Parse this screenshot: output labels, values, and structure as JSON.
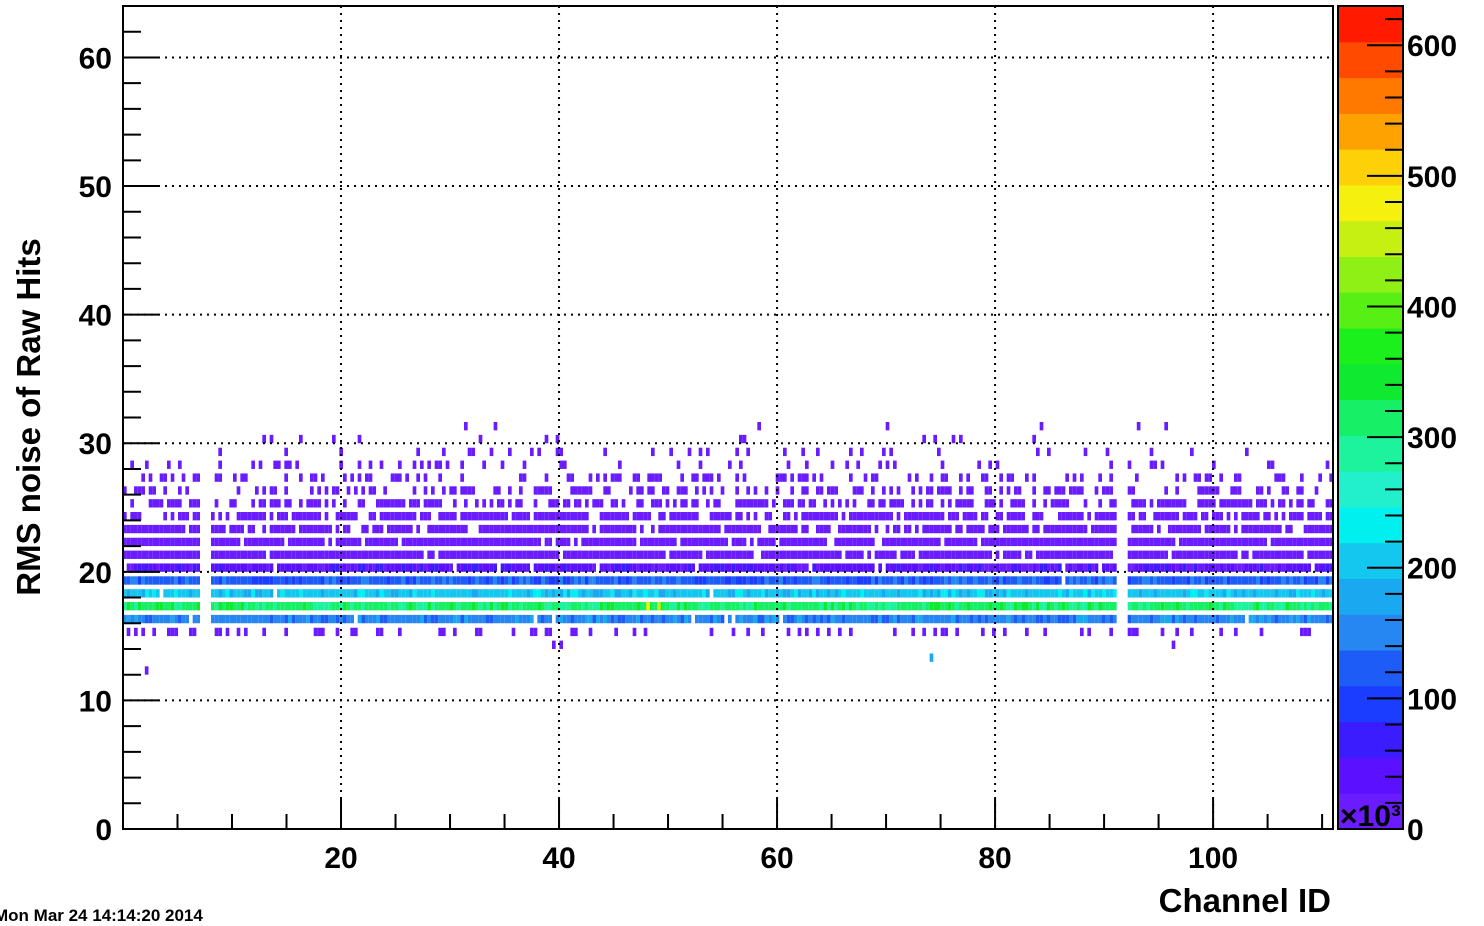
{
  "chart_data": {
    "type": "heatmap",
    "xlabel": "Channel ID",
    "ylabel": "RMS noise of Raw Hits",
    "xlim": [
      0,
      111
    ],
    "ylim": [
      0,
      64
    ],
    "x_ticks": [
      20,
      40,
      60,
      80,
      100
    ],
    "y_ticks": [
      0,
      10,
      20,
      30,
      40,
      50,
      60
    ],
    "grid": true,
    "colorbar": {
      "min": 0,
      "max": 630,
      "ticks": [
        0,
        100,
        200,
        300,
        400,
        500,
        600
      ],
      "multiplier_label": "×10³",
      "palette": [
        "#6a1cff",
        "#5b10ff",
        "#3a1cff",
        "#1a3dff",
        "#1e5cf8",
        "#2686f2",
        "#1aa8f0",
        "#14c7ee",
        "#00f0f0",
        "#22f0cc",
        "#1df29c",
        "#16ef66",
        "#0fe930",
        "#1cf01c",
        "#57ef14",
        "#8ef014",
        "#c6f011",
        "#f5f00d",
        "#fdd008",
        "#fda200",
        "#ff7800",
        "#ff4a00",
        "#ff1a00"
      ]
    },
    "gap_channels": [
      7,
      91
    ],
    "profile": [
      {
        "rms": 16,
        "level": 5,
        "fill": 0.97
      },
      {
        "rms": 17,
        "level": 11,
        "fill": 0.99
      },
      {
        "rms": 18,
        "level": 7,
        "fill": 0.99
      },
      {
        "rms": 19,
        "level": 4,
        "fill": 0.99
      },
      {
        "rms": 20,
        "level": 1,
        "fill": 0.96
      },
      {
        "rms": 21,
        "level": 0,
        "fill": 0.95
      },
      {
        "rms": 22,
        "level": 0,
        "fill": 0.92
      },
      {
        "rms": 23,
        "level": 0,
        "fill": 0.82
      },
      {
        "rms": 24,
        "level": 0,
        "fill": 0.72
      },
      {
        "rms": 25,
        "level": 0,
        "fill": 0.6
      },
      {
        "rms": 26,
        "level": 0,
        "fill": 0.45
      },
      {
        "rms": 27,
        "level": 0,
        "fill": 0.3
      },
      {
        "rms": 28,
        "level": 0,
        "fill": 0.18
      },
      {
        "rms": 29,
        "level": 0,
        "fill": 0.1
      },
      {
        "rms": 30,
        "level": 0,
        "fill": 0.06
      },
      {
        "rms": 31,
        "level": 0,
        "fill": 0.015
      },
      {
        "rms": 15,
        "level": 0,
        "fill": 0.25
      },
      {
        "rms": 14,
        "level": 0,
        "fill": 0.01
      }
    ],
    "isolated_cells": [
      {
        "channel": 2,
        "rms": 12,
        "level": 0
      },
      {
        "channel": 74,
        "rms": 13,
        "level": 6
      },
      {
        "channel": 48,
        "rms": 17,
        "level": 17
      },
      {
        "channel": 49,
        "rms": 17,
        "level": 16
      },
      {
        "channel": 34,
        "rms": 31,
        "level": 0
      },
      {
        "channel": 93,
        "rms": 31,
        "level": 0
      }
    ]
  },
  "timestamp": "Mon Mar 24 14:14:20 2014"
}
